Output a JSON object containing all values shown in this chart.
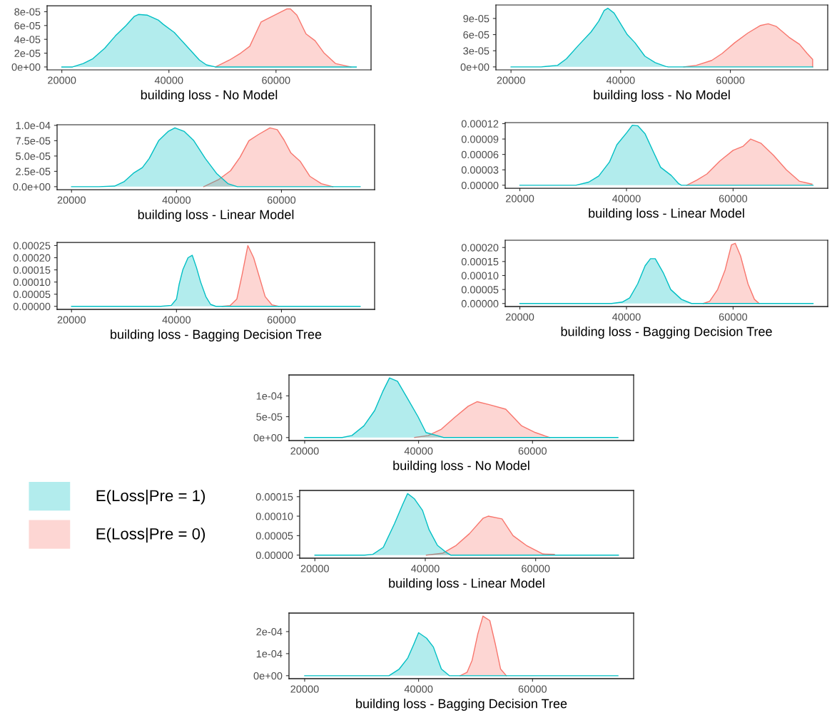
{
  "chart_data": [
    {
      "type": "area",
      "xlabel": "building loss - No Model",
      "xlim": [
        17250,
        77750
      ],
      "xticks": [
        20000,
        40000,
        60000
      ],
      "ylim": [
        -4.2e-06,
        8.87e-05
      ],
      "yticks": [
        {
          "value": 0,
          "label": "0e+00"
        },
        {
          "value": 2e-05,
          "label": "2e-05"
        },
        {
          "value": 4e-05,
          "label": "4e-05"
        },
        {
          "value": 6e-05,
          "label": "6e-05"
        },
        {
          "value": 8e-05,
          "label": "8e-05"
        }
      ],
      "grid": false,
      "series": [
        {
          "color": "#00bfc4",
          "x": [
            20000,
            22000,
            24000,
            25800,
            28000,
            30000,
            32000,
            33500,
            34300,
            36000,
            38000,
            38900,
            41000,
            43000,
            45000,
            45700,
            47000,
            48700,
            75000
          ],
          "values": [
            0,
            0,
            5e-06,
            1.2e-05,
            2.7e-05,
            4.5e-05,
            6e-05,
            7.3e-05,
            7.6e-05,
            7.5e-05,
            6.8e-05,
            6.2e-05,
            5e-05,
            3.3e-05,
            1.6e-05,
            1e-05,
            3e-06,
            0,
            0
          ]
        },
        {
          "color": "#f8766d",
          "x": [
            48700,
            51300,
            53400,
            55100,
            57200,
            59700,
            62000,
            62700,
            63900,
            65600,
            67300,
            69000,
            71100,
            74000
          ],
          "values": [
            0,
            1e-05,
            2e-05,
            3e-05,
            6.5e-05,
            7.5e-05,
            8.4e-05,
            8.4e-05,
            7.5e-05,
            4.8e-05,
            3.8e-05,
            2e-05,
            5e-06,
            0
          ]
        }
      ]
    },
    {
      "type": "area",
      "xlabel": "building loss - No Model",
      "xlim": [
        17250,
        77750
      ],
      "xticks": [
        20000,
        40000,
        60000
      ],
      "ylim": [
        -5.5e-06,
        0.000115
      ],
      "yticks": [
        {
          "value": 0,
          "label": "0e+00"
        },
        {
          "value": 3e-05,
          "label": "3e-05"
        },
        {
          "value": 6e-05,
          "label": "6e-05"
        },
        {
          "value": 9e-05,
          "label": "9e-05"
        }
      ],
      "grid": false,
      "series": [
        {
          "color": "#00bfc4",
          "x": [
            20000,
            25500,
            28500,
            30100,
            32300,
            34600,
            36000,
            37000,
            37660,
            38800,
            41200,
            42600,
            44400,
            46300,
            48200,
            48700,
            75000
          ],
          "values": [
            0,
            0,
            3e-06,
            1.5e-05,
            4e-05,
            6.5e-05,
            8.5e-05,
            0.000105,
            0.000109,
            0.0001,
            6e-05,
            4.5e-05,
            2e-05,
            8e-06,
            1e-06,
            0,
            0
          ]
        },
        {
          "color": "#f8766d",
          "x": [
            51500,
            53800,
            56600,
            58500,
            60800,
            63200,
            65500,
            66900,
            68400,
            70700,
            72600,
            74000,
            75000,
            75000
          ],
          "values": [
            0,
            3e-06,
            1.2e-05,
            2.5e-05,
            4.5e-05,
            6.3e-05,
            7.7e-05,
            8e-05,
            7.5e-05,
            5.5e-05,
            4.2e-05,
            2.5e-05,
            1.4e-05,
            0
          ]
        }
      ]
    },
    {
      "type": "area",
      "xlabel": "building loss - Linear Model",
      "xlim": [
        17250,
        77750
      ],
      "xticks": [
        20000,
        40000,
        60000
      ],
      "ylim": [
        -4.8e-06,
        0.000101
      ],
      "yticks": [
        {
          "value": 0,
          "label": "0.0e+00"
        },
        {
          "value": 2.5e-05,
          "label": "2.5e-05"
        },
        {
          "value": 5e-05,
          "label": "5.0e-05"
        },
        {
          "value": 7.5e-05,
          "label": "7.5e-05"
        },
        {
          "value": 0.0001,
          "label": "1.0e-04"
        }
      ],
      "grid": false,
      "series": [
        {
          "color": "#00bfc4",
          "x": [
            20000,
            25200,
            28200,
            30000,
            31800,
            33500,
            34800,
            36600,
            38400,
            39700,
            41500,
            43300,
            45500,
            47700,
            49800,
            51600,
            75000
          ],
          "values": [
            0,
            0,
            1e-06,
            8e-06,
            2.2e-05,
            3.1e-05,
            4.6e-05,
            7.5e-05,
            9e-05,
            9.6e-05,
            9e-05,
            7.5e-05,
            4.6e-05,
            2.1e-05,
            5e-06,
            0,
            0
          ]
        },
        {
          "color": "#f8766d",
          "x": [
            45200,
            48100,
            50300,
            52100,
            53800,
            55600,
            57800,
            59200,
            60500,
            61800,
            63600,
            65400,
            67600,
            69800
          ],
          "values": [
            0,
            1.2e-05,
            2.6e-05,
            4.8e-05,
            7.5e-05,
            8.5e-05,
            9.6e-05,
            9.3e-05,
            7.6e-05,
            5.5e-05,
            4.1e-05,
            1.7e-05,
            5e-06,
            0
          ]
        }
      ]
    },
    {
      "type": "area",
      "xlabel": "building loss - Linear Model",
      "xlim": [
        17250,
        77750
      ],
      "xticks": [
        20000,
        40000,
        60000
      ],
      "ylim": [
        -5.8e-06,
        0.000122
      ],
      "yticks": [
        {
          "value": 0,
          "label": "0.00000"
        },
        {
          "value": 3e-05,
          "label": "0.00003"
        },
        {
          "value": 6e-05,
          "label": "0.00006"
        },
        {
          "value": 9e-05,
          "label": "0.00009"
        },
        {
          "value": 0.00012,
          "label": "0.00012"
        }
      ],
      "grid": false,
      "series": [
        {
          "color": "#00bfc4",
          "x": [
            20000,
            30500,
            32900,
            34800,
            36800,
            38200,
            40100,
            41100,
            42100,
            43500,
            45000,
            46400,
            48400,
            49800,
            50300,
            75000
          ],
          "values": [
            0,
            0,
            6e-06,
            1.8e-05,
            4.5e-05,
            7.9e-05,
            0.000103,
            0.000117,
            0.000116,
            0.0001,
            6.6e-05,
            3.5e-05,
            1.9e-05,
            3e-06,
            0,
            0
          ]
        },
        {
          "color": "#f8766d",
          "x": [
            51300,
            53200,
            55100,
            57500,
            60000,
            61900,
            63300,
            65200,
            67600,
            70000,
            72400,
            74800
          ],
          "values": [
            0,
            1e-05,
            2.2e-05,
            4.7e-05,
            6.8e-05,
            7.6e-05,
            9e-05,
            8.2e-05,
            5.8e-05,
            3e-05,
            8e-06,
            2e-06
          ]
        }
      ]
    },
    {
      "type": "area",
      "xlabel": "building loss - Bagging Decision Tree",
      "xlim": [
        17250,
        77750
      ],
      "xticks": [
        20000,
        40000,
        60000
      ],
      "ylim": [
        -1.25e-05,
        0.000263
      ],
      "yticks": [
        {
          "value": 0,
          "label": "0.00000"
        },
        {
          "value": 5e-05,
          "label": "0.00005"
        },
        {
          "value": 0.0001,
          "label": "0.00010"
        },
        {
          "value": 0.00015,
          "label": "0.00015"
        },
        {
          "value": 0.0002,
          "label": "0.00020"
        },
        {
          "value": 0.00025,
          "label": "0.00025"
        }
      ],
      "grid": false,
      "series": [
        {
          "color": "#00bfc4",
          "x": [
            20000,
            37000,
            39000,
            40000,
            40500,
            41200,
            42200,
            43000,
            43800,
            44600,
            45600,
            46500,
            47500,
            75000
          ],
          "values": [
            0,
            0,
            4e-06,
            3e-05,
            9e-05,
            0.00015,
            0.0002,
            0.00021,
            0.00016,
            0.0001,
            4e-05,
            8e-06,
            0,
            0
          ]
        },
        {
          "color": "#f8766d",
          "x": [
            48700,
            50200,
            51500,
            52500,
            53600,
            54700,
            55800,
            56900,
            58200,
            59500
          ],
          "values": [
            0,
            3e-06,
            3e-05,
            0.00013,
            0.00025,
            0.0002,
            0.00012,
            4e-05,
            6e-06,
            0
          ]
        }
      ]
    },
    {
      "type": "area",
      "xlabel": "building loss - Bagging Decision Tree",
      "xlim": [
        17250,
        77750
      ],
      "xticks": [
        20000,
        40000,
        60000
      ],
      "ylim": [
        -1.08e-05,
        0.000226
      ],
      "yticks": [
        {
          "value": 0,
          "label": "0.00000"
        },
        {
          "value": 5e-05,
          "label": "0.00005"
        },
        {
          "value": 0.0001,
          "label": "0.00010"
        },
        {
          "value": 0.00015,
          "label": "0.00015"
        },
        {
          "value": 0.0002,
          "label": "0.00020"
        }
      ],
      "grid": false,
      "series": [
        {
          "color": "#00bfc4",
          "x": [
            20000,
            37200,
            39200,
            40600,
            42100,
            43500,
            44500,
            45400,
            46900,
            48300,
            50300,
            52200,
            75000
          ],
          "values": [
            0,
            0,
            5e-06,
            2e-05,
            7e-05,
            0.000135,
            0.00016,
            0.00016,
            0.00011,
            5e-05,
            1.5e-05,
            0,
            0
          ]
        },
        {
          "color": "#f8766d",
          "x": [
            54400,
            55600,
            57100,
            58500,
            59700,
            60400,
            61400,
            62800,
            64000,
            64900
          ],
          "values": [
            0,
            8e-06,
            5e-05,
            0.00012,
            0.00021,
            0.000215,
            0.00017,
            7e-05,
            1.5e-05,
            0
          ]
        }
      ]
    },
    {
      "type": "area",
      "xlabel": "building loss - No Model",
      "xlim": [
        17250,
        77750
      ],
      "xticks": [
        20000,
        40000,
        60000
      ],
      "ylim": [
        -7.2e-06,
        0.00015
      ],
      "yticks": [
        {
          "value": 0,
          "label": "0e+00"
        },
        {
          "value": 5e-05,
          "label": "5e-05"
        },
        {
          "value": 0.0001,
          "label": "1e-04"
        }
      ],
      "grid": false,
      "legend": "left",
      "series": [
        {
          "name": "E(Loss|Pre = 1)",
          "color": "#00bfc4",
          "x": [
            20000,
            26600,
            28300,
            30400,
            32300,
            33700,
            34900,
            36300,
            38000,
            39900,
            41300,
            43200,
            44400,
            75000
          ],
          "values": [
            0,
            0,
            5e-06,
            2.8e-05,
            6.5e-05,
            0.00011,
            0.000143,
            0.000135,
            9.5e-05,
            5e-05,
            1.2e-05,
            5e-06,
            0,
            0
          ]
        },
        {
          "name": "E(Loss|Pre = 0)",
          "color": "#f8766d",
          "x": [
            39300,
            41700,
            44000,
            46300,
            48700,
            50300,
            52400,
            55300,
            58100,
            60500,
            63000
          ],
          "values": [
            0,
            5e-06,
            2e-05,
            4.8e-05,
            7.5e-05,
            8.6e-05,
            7.9e-05,
            6.8e-05,
            2.8e-05,
            1.2e-05,
            0
          ]
        }
      ]
    },
    {
      "type": "area",
      "xlabel": "building loss - Linear Model",
      "xlim": [
        17250,
        77750
      ],
      "xticks": [
        20000,
        40000,
        60000
      ],
      "ylim": [
        -7.9e-06,
        0.000166
      ],
      "yticks": [
        {
          "value": 0,
          "label": "0.00000"
        },
        {
          "value": 5e-05,
          "label": "0.00005"
        },
        {
          "value": 0.0001,
          "label": "0.00010"
        },
        {
          "value": 0.00015,
          "label": "0.00015"
        }
      ],
      "grid": false,
      "series": [
        {
          "color": "#00bfc4",
          "x": [
            20000,
            29000,
            30500,
            32400,
            34400,
            35900,
            36800,
            38000,
            39500,
            40700,
            42200,
            43700,
            44600,
            75000
          ],
          "values": [
            0,
            0,
            2e-06,
            2e-05,
            8e-05,
            0.00013,
            0.000158,
            0.000145,
            0.000115,
            6.5e-05,
            2.5e-05,
            8e-06,
            0,
            0
          ]
        },
        {
          "color": "#f8766d",
          "x": [
            40200,
            43200,
            45600,
            48000,
            50500,
            51400,
            53900,
            55900,
            58300,
            61300,
            63400
          ],
          "values": [
            0,
            5e-06,
            2.5e-05,
            5.5e-05,
            9.5e-05,
            0.0001,
            9.3e-05,
            5e-05,
            2.5e-05,
            3e-06,
            2e-06
          ]
        }
      ]
    },
    {
      "type": "area",
      "xlabel": "building loss - Bagging Decision Tree",
      "xlim": [
        17250,
        77750
      ],
      "xticks": [
        20000,
        40000,
        60000
      ],
      "ylim": [
        -1.35e-05,
        0.000284
      ],
      "yticks": [
        {
          "value": 0,
          "label": "0e+00"
        },
        {
          "value": 0.0001,
          "label": "1e-04"
        },
        {
          "value": 0.0002,
          "label": "2e-04"
        }
      ],
      "grid": false,
      "series": [
        {
          "color": "#00bfc4",
          "x": [
            20000,
            34800,
            36600,
            38100,
            39200,
            40000,
            41400,
            42600,
            44000,
            45400,
            75000
          ],
          "values": [
            0,
            0,
            3e-05,
            8e-05,
            0.000145,
            0.000195,
            0.00017,
            0.00013,
            3e-05,
            0,
            0
          ]
        },
        {
          "color": "#f8766d",
          "x": [
            47300,
            48500,
            49400,
            50400,
            51300,
            52500,
            53500,
            54400,
            55400
          ],
          "values": [
            0,
            1.5e-05,
            7e-05,
            0.00019,
            0.00027,
            0.00025,
            0.00014,
            3e-05,
            0
          ]
        }
      ]
    }
  ]
}
